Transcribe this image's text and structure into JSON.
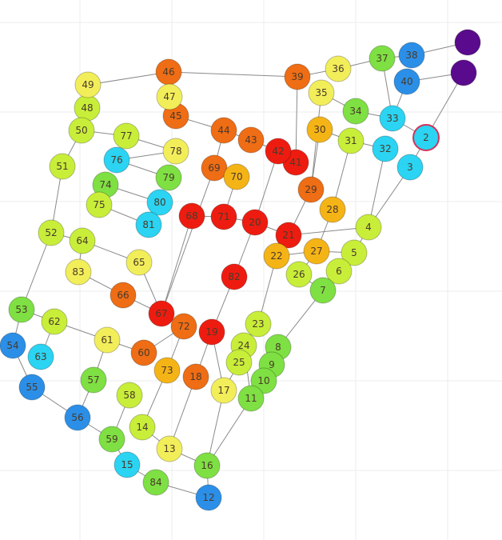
{
  "graph": {
    "nodes": [
      {
        "id": "1",
        "label": "",
        "color": "#5a0a8c"
      },
      {
        "id": "1b",
        "label": "",
        "color": "#5a0a8c"
      },
      {
        "id": "2",
        "label": "2",
        "color": "#2ad4f2",
        "highlight": "#d0345a"
      },
      {
        "id": "3",
        "label": "3",
        "color": "#2ad4f2"
      },
      {
        "id": "4",
        "label": "4",
        "color": "#c8ee3a"
      },
      {
        "id": "5",
        "label": "5",
        "color": "#c8ee3a"
      },
      {
        "id": "6",
        "label": "6",
        "color": "#c8ee3a"
      },
      {
        "id": "7",
        "label": "7",
        "color": "#7ee043"
      },
      {
        "id": "8",
        "label": "8",
        "color": "#7ee043"
      },
      {
        "id": "9",
        "label": "9",
        "color": "#7ee043"
      },
      {
        "id": "10",
        "label": "10",
        "color": "#7ee043"
      },
      {
        "id": "11",
        "label": "11",
        "color": "#7ee043"
      },
      {
        "id": "12",
        "label": "12",
        "color": "#2b8fe8"
      },
      {
        "id": "13",
        "label": "13",
        "color": "#f2ee5a"
      },
      {
        "id": "14",
        "label": "14",
        "color": "#c8ee3a"
      },
      {
        "id": "15",
        "label": "15",
        "color": "#2ad4f2"
      },
      {
        "id": "16",
        "label": "16",
        "color": "#7ee043"
      },
      {
        "id": "17",
        "label": "17",
        "color": "#f2ee5a"
      },
      {
        "id": "18",
        "label": "18",
        "color": "#ef6d14"
      },
      {
        "id": "19",
        "label": "19",
        "color": "#ee1c10"
      },
      {
        "id": "20",
        "label": "20",
        "color": "#ee1c10"
      },
      {
        "id": "21",
        "label": "21",
        "color": "#ee1c10"
      },
      {
        "id": "22",
        "label": "22",
        "color": "#f5b416"
      },
      {
        "id": "23",
        "label": "23",
        "color": "#c8ee3a"
      },
      {
        "id": "24",
        "label": "24",
        "color": "#c8ee3a"
      },
      {
        "id": "25",
        "label": "25",
        "color": "#c8ee3a"
      },
      {
        "id": "26",
        "label": "26",
        "color": "#c8ee3a"
      },
      {
        "id": "27",
        "label": "27",
        "color": "#f5b416"
      },
      {
        "id": "28",
        "label": "28",
        "color": "#f5b416"
      },
      {
        "id": "29",
        "label": "29",
        "color": "#ef6d14"
      },
      {
        "id": "30",
        "label": "30",
        "color": "#f5b416"
      },
      {
        "id": "31",
        "label": "31",
        "color": "#c8ee3a"
      },
      {
        "id": "32",
        "label": "32",
        "color": "#2ad4f2"
      },
      {
        "id": "33",
        "label": "33",
        "color": "#2ad4f2"
      },
      {
        "id": "34",
        "label": "34",
        "color": "#7ee043"
      },
      {
        "id": "35",
        "label": "35",
        "color": "#f2ee5a"
      },
      {
        "id": "36",
        "label": "36",
        "color": "#f2ee5a"
      },
      {
        "id": "37",
        "label": "37",
        "color": "#7ee043"
      },
      {
        "id": "38",
        "label": "38",
        "color": "#2b8fe8"
      },
      {
        "id": "39",
        "label": "39",
        "color": "#ef6d14"
      },
      {
        "id": "40",
        "label": "40",
        "color": "#2b8fe8"
      },
      {
        "id": "41",
        "label": "41",
        "color": "#ee1c10"
      },
      {
        "id": "42",
        "label": "42",
        "color": "#ee1c10"
      },
      {
        "id": "43",
        "label": "43",
        "color": "#ef6d14"
      },
      {
        "id": "44",
        "label": "44",
        "color": "#ef6d14"
      },
      {
        "id": "45",
        "label": "45",
        "color": "#ef6d14"
      },
      {
        "id": "46",
        "label": "46",
        "color": "#ef6d14"
      },
      {
        "id": "47",
        "label": "47",
        "color": "#f2ee5a"
      },
      {
        "id": "48",
        "label": "48",
        "color": "#c8ee3a"
      },
      {
        "id": "49",
        "label": "49",
        "color": "#f2ee5a"
      },
      {
        "id": "50",
        "label": "50",
        "color": "#c8ee3a"
      },
      {
        "id": "51",
        "label": "51",
        "color": "#c8ee3a"
      },
      {
        "id": "52",
        "label": "52",
        "color": "#c8ee3a"
      },
      {
        "id": "53",
        "label": "53",
        "color": "#7ee043"
      },
      {
        "id": "54",
        "label": "54",
        "color": "#2b8fe8"
      },
      {
        "id": "55",
        "label": "55",
        "color": "#2b8fe8"
      },
      {
        "id": "56",
        "label": "56",
        "color": "#2b8fe8"
      },
      {
        "id": "57",
        "label": "57",
        "color": "#7ee043"
      },
      {
        "id": "58",
        "label": "58",
        "color": "#c8ee3a"
      },
      {
        "id": "59",
        "label": "59",
        "color": "#7ee043"
      },
      {
        "id": "60",
        "label": "60",
        "color": "#ef6d14"
      },
      {
        "id": "61",
        "label": "61",
        "color": "#f2ee5a"
      },
      {
        "id": "62",
        "label": "62",
        "color": "#c8ee3a"
      },
      {
        "id": "63",
        "label": "63",
        "color": "#2ad4f2"
      },
      {
        "id": "64",
        "label": "64",
        "color": "#c8ee3a"
      },
      {
        "id": "65",
        "label": "65",
        "color": "#f2ee5a"
      },
      {
        "id": "66",
        "label": "66",
        "color": "#ef6d14"
      },
      {
        "id": "67",
        "label": "67",
        "color": "#ee1c10"
      },
      {
        "id": "68",
        "label": "68",
        "color": "#ee1c10"
      },
      {
        "id": "69",
        "label": "69",
        "color": "#ef6d14"
      },
      {
        "id": "70",
        "label": "70",
        "color": "#f5b416"
      },
      {
        "id": "71",
        "label": "71",
        "color": "#ee1c10"
      },
      {
        "id": "72",
        "label": "72",
        "color": "#ef6d14"
      },
      {
        "id": "73",
        "label": "73",
        "color": "#f5b416"
      },
      {
        "id": "74",
        "label": "74",
        "color": "#7ee043"
      },
      {
        "id": "75",
        "label": "75",
        "color": "#c8ee3a"
      },
      {
        "id": "76",
        "label": "76",
        "color": "#2ad4f2"
      },
      {
        "id": "77",
        "label": "77",
        "color": "#c8ee3a"
      },
      {
        "id": "78",
        "label": "78",
        "color": "#f2ee5a"
      },
      {
        "id": "79",
        "label": "79",
        "color": "#7ee043"
      },
      {
        "id": "80",
        "label": "80",
        "color": "#2ad4f2"
      },
      {
        "id": "81",
        "label": "81",
        "color": "#2ad4f2"
      },
      {
        "id": "82",
        "label": "82",
        "color": "#ee1c10"
      },
      {
        "id": "83",
        "label": "83",
        "color": "#f2ee5a"
      },
      {
        "id": "84",
        "label": "84",
        "color": "#7ee043"
      }
    ],
    "edges": [
      [
        "46",
        "49"
      ],
      [
        "46",
        "39"
      ],
      [
        "46",
        "47"
      ],
      [
        "49",
        "48"
      ],
      [
        "48",
        "50"
      ],
      [
        "50",
        "51"
      ],
      [
        "51",
        "52"
      ],
      [
        "52",
        "53"
      ],
      [
        "53",
        "54"
      ],
      [
        "50",
        "77"
      ],
      [
        "77",
        "78"
      ],
      [
        "76",
        "79"
      ],
      [
        "76",
        "78"
      ],
      [
        "74",
        "80"
      ],
      [
        "75",
        "81"
      ],
      [
        "52",
        "64"
      ],
      [
        "64",
        "65"
      ],
      [
        "64",
        "83"
      ],
      [
        "83",
        "66"
      ],
      [
        "66",
        "67"
      ],
      [
        "62",
        "53"
      ],
      [
        "62",
        "63"
      ],
      [
        "62",
        "61"
      ],
      [
        "61",
        "60"
      ],
      [
        "61",
        "57"
      ],
      [
        "57",
        "56"
      ],
      [
        "55",
        "56"
      ],
      [
        "54",
        "55"
      ],
      [
        "56",
        "59"
      ],
      [
        "59",
        "15"
      ],
      [
        "15",
        "84"
      ],
      [
        "84",
        "12"
      ],
      [
        "58",
        "59"
      ],
      [
        "60",
        "72"
      ],
      [
        "72",
        "73"
      ],
      [
        "73",
        "14"
      ],
      [
        "14",
        "13"
      ],
      [
        "13",
        "16"
      ],
      [
        "16",
        "12"
      ],
      [
        "16",
        "17"
      ],
      [
        "16",
        "11"
      ],
      [
        "17",
        "19"
      ],
      [
        "19",
        "82"
      ],
      [
        "82",
        "20"
      ],
      [
        "18",
        "13"
      ],
      [
        "18",
        "19"
      ],
      [
        "67",
        "68"
      ],
      [
        "68",
        "71"
      ],
      [
        "71",
        "20"
      ],
      [
        "20",
        "21"
      ],
      [
        "21",
        "4"
      ],
      [
        "20",
        "42"
      ],
      [
        "42",
        "41"
      ],
      [
        "42",
        "43"
      ],
      [
        "43",
        "44"
      ],
      [
        "44",
        "45"
      ],
      [
        "45",
        "47"
      ],
      [
        "44",
        "69"
      ],
      [
        "69",
        "67"
      ],
      [
        "70",
        "71"
      ],
      [
        "39",
        "41"
      ],
      [
        "39",
        "36"
      ],
      [
        "36",
        "37"
      ],
      [
        "37",
        "38"
      ],
      [
        "38",
        "1"
      ],
      [
        "40",
        "1b"
      ],
      [
        "1b",
        "2"
      ],
      [
        "2",
        "33"
      ],
      [
        "33",
        "34"
      ],
      [
        "34",
        "35"
      ],
      [
        "33",
        "37"
      ],
      [
        "33",
        "40"
      ],
      [
        "32",
        "31"
      ],
      [
        "31",
        "30"
      ],
      [
        "30",
        "29"
      ],
      [
        "29",
        "21"
      ],
      [
        "29",
        "35"
      ],
      [
        "32",
        "4"
      ],
      [
        "3",
        "2"
      ],
      [
        "3",
        "4"
      ],
      [
        "4",
        "5"
      ],
      [
        "5",
        "27"
      ],
      [
        "27",
        "28"
      ],
      [
        "28",
        "31"
      ],
      [
        "27",
        "22"
      ],
      [
        "22",
        "23"
      ],
      [
        "23",
        "24"
      ],
      [
        "24",
        "25"
      ],
      [
        "25",
        "17"
      ],
      [
        "6",
        "7"
      ],
      [
        "7",
        "26"
      ],
      [
        "26",
        "27"
      ],
      [
        "7",
        "8"
      ],
      [
        "8",
        "9"
      ],
      [
        "9",
        "10"
      ],
      [
        "10",
        "11"
      ],
      [
        "11",
        "24"
      ],
      [
        "65",
        "67"
      ]
    ]
  }
}
